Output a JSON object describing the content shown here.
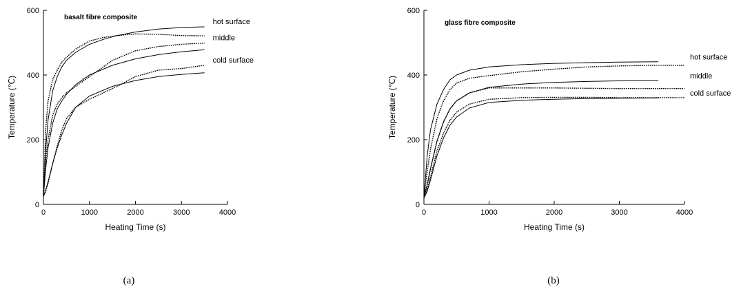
{
  "chart_data": [
    {
      "type": "line",
      "panel_label": "(a)",
      "title": "basalt fibre composite",
      "xlabel": "Heating Time (s)",
      "ylabel": "Temperature (℃)",
      "xlim": [
        0,
        4000
      ],
      "ylim": [
        0,
        600
      ],
      "xticks": [
        0,
        1000,
        2000,
        3000,
        4000
      ],
      "yticks": [
        0,
        200,
        400,
        600
      ],
      "grid": false,
      "series": [
        {
          "name": "hot surface",
          "style": "solid",
          "x": [
            0,
            50,
            100,
            200,
            300,
            400,
            500,
            700,
            1000,
            1300,
            1600,
            2000,
            2500,
            3000,
            3500
          ],
          "y": [
            25,
            170,
            260,
            350,
            395,
            425,
            445,
            470,
            495,
            510,
            522,
            533,
            542,
            547,
            549
          ]
        },
        {
          "name": "middle",
          "style": "solid",
          "x": [
            0,
            50,
            100,
            200,
            300,
            400,
            500,
            700,
            1000,
            1500,
            2000,
            2500,
            3000,
            3500
          ],
          "y": [
            25,
            110,
            175,
            250,
            295,
            320,
            340,
            370,
            400,
            430,
            450,
            463,
            472,
            478
          ]
        },
        {
          "name": "cold surface",
          "style": "solid",
          "x": [
            0,
            50,
            100,
            200,
            300,
            400,
            500,
            700,
            1000,
            1500,
            2000,
            2500,
            3000,
            3500
          ],
          "y": [
            25,
            45,
            70,
            125,
            175,
            215,
            250,
            300,
            335,
            365,
            383,
            395,
            402,
            407
          ]
        },
        {
          "name": "hot surface",
          "style": "dotted",
          "x": [
            0,
            50,
            100,
            200,
            300,
            400,
            500,
            700,
            1000,
            1300,
            1600,
            2000,
            2500,
            3000,
            3500
          ],
          "y": [
            25,
            230,
            320,
            385,
            415,
            440,
            455,
            480,
            505,
            516,
            522,
            527,
            526,
            522,
            521
          ]
        },
        {
          "name": "middle",
          "style": "dotted",
          "x": [
            0,
            50,
            100,
            200,
            300,
            400,
            500,
            700,
            1000,
            1500,
            2000,
            2500,
            3000,
            3500
          ],
          "y": [
            25,
            140,
            200,
            275,
            310,
            330,
            345,
            365,
            395,
            445,
            475,
            488,
            495,
            499
          ]
        },
        {
          "name": "cold surface",
          "style": "dotted",
          "x": [
            0,
            50,
            100,
            200,
            300,
            400,
            500,
            700,
            1000,
            1300,
            1600,
            2000,
            2500,
            3000,
            3500
          ],
          "y": [
            25,
            40,
            65,
            125,
            180,
            230,
            265,
            300,
            325,
            345,
            365,
            395,
            415,
            420,
            430
          ]
        }
      ]
    },
    {
      "type": "line",
      "panel_label": "(b)",
      "title": "glass fibre composite",
      "xlabel": "Heating Time (s)",
      "ylabel": "Temperature (℃)",
      "xlim": [
        0,
        4000
      ],
      "ylim": [
        0,
        600
      ],
      "xticks": [
        0,
        1000,
        2000,
        3000,
        4000
      ],
      "yticks": [
        0,
        200,
        400,
        600
      ],
      "grid": false,
      "series": [
        {
          "name": "hot surface",
          "style": "solid",
          "x": [
            0,
            50,
            100,
            200,
            300,
            400,
            500,
            700,
            1000,
            1500,
            2000,
            2500,
            3000,
            3600
          ],
          "y": [
            20,
            150,
            230,
            310,
            355,
            385,
            400,
            415,
            425,
            432,
            436,
            438,
            440,
            441
          ]
        },
        {
          "name": "middle",
          "style": "solid",
          "x": [
            0,
            50,
            100,
            200,
            300,
            400,
            500,
            700,
            1000,
            1500,
            2000,
            2500,
            3000,
            3600
          ],
          "y": [
            20,
            60,
            110,
            195,
            255,
            295,
            320,
            345,
            362,
            372,
            377,
            380,
            382,
            383
          ]
        },
        {
          "name": "cold surface",
          "style": "solid",
          "x": [
            0,
            50,
            100,
            200,
            300,
            400,
            500,
            700,
            1000,
            1500,
            2000,
            2500,
            3000,
            3600
          ],
          "y": [
            20,
            40,
            75,
            150,
            205,
            245,
            270,
            298,
            315,
            322,
            325,
            327,
            328,
            329
          ]
        },
        {
          "name": "hot surface",
          "style": "dotted",
          "x": [
            0,
            50,
            100,
            200,
            300,
            400,
            500,
            700,
            1000,
            1500,
            2000,
            2500,
            3000,
            3500,
            4000
          ],
          "y": [
            20,
            100,
            170,
            265,
            320,
            355,
            375,
            390,
            398,
            410,
            418,
            425,
            428,
            430,
            430
          ]
        },
        {
          "name": "middle",
          "style": "dotted",
          "x": [
            0,
            50,
            100,
            200,
            300,
            400,
            500,
            700,
            1000,
            1500,
            2000,
            2500,
            3000,
            3500,
            4000
          ],
          "y": [
            20,
            60,
            110,
            195,
            255,
            295,
            320,
            345,
            360,
            360,
            360,
            359,
            358,
            358,
            358
          ]
        },
        {
          "name": "cold surface",
          "style": "dotted",
          "x": [
            0,
            50,
            100,
            200,
            300,
            400,
            500,
            700,
            1000,
            1500,
            2000,
            2500,
            3000,
            3500,
            4000
          ],
          "y": [
            20,
            45,
            85,
            165,
            220,
            260,
            285,
            310,
            325,
            330,
            331,
            331,
            330,
            330,
            330
          ]
        }
      ]
    }
  ]
}
